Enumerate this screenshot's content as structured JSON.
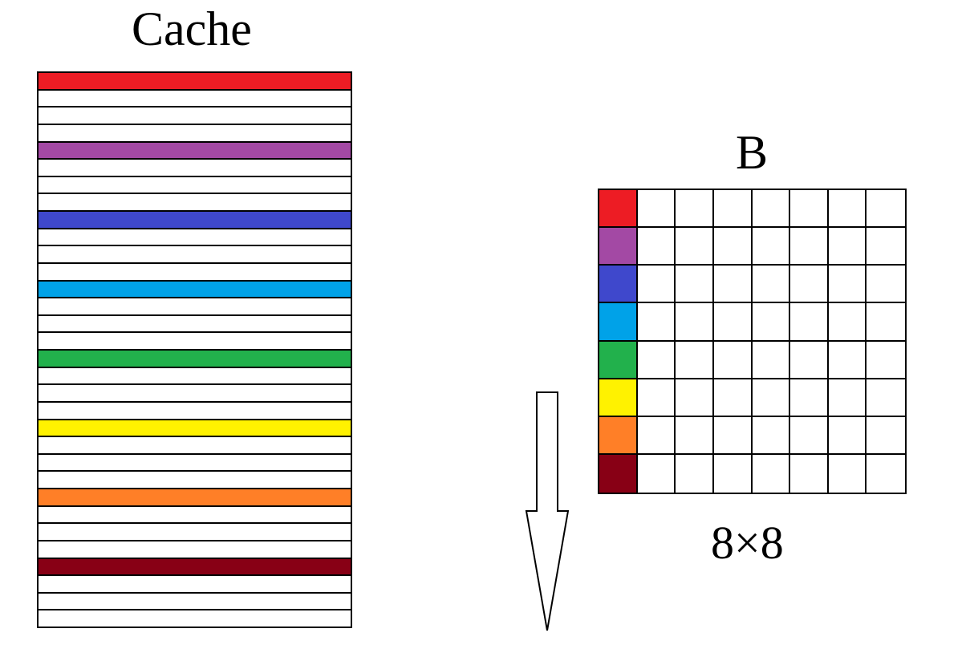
{
  "cache": {
    "title": "Cache",
    "line_count": 32,
    "highlighted_lines": [
      {
        "index": 0,
        "color": "#ed1c24"
      },
      {
        "index": 4,
        "color": "#a349a4"
      },
      {
        "index": 8,
        "color": "#3f48cc"
      },
      {
        "index": 12,
        "color": "#00a2e8"
      },
      {
        "index": 16,
        "color": "#22b14c"
      },
      {
        "index": 20,
        "color": "#fff200"
      },
      {
        "index": 24,
        "color": "#ff7f27"
      },
      {
        "index": 28,
        "color": "#880015"
      }
    ]
  },
  "matrix": {
    "title": "B",
    "size_label": "8×8",
    "rows": 8,
    "cols": 8,
    "first_column_colors": [
      "#ed1c24",
      "#a349a4",
      "#3f48cc",
      "#00a2e8",
      "#22b14c",
      "#fff200",
      "#ff7f27",
      "#880015"
    ]
  },
  "arrow": {
    "direction": "down",
    "fill": "#ffffff",
    "stroke": "#000000"
  }
}
